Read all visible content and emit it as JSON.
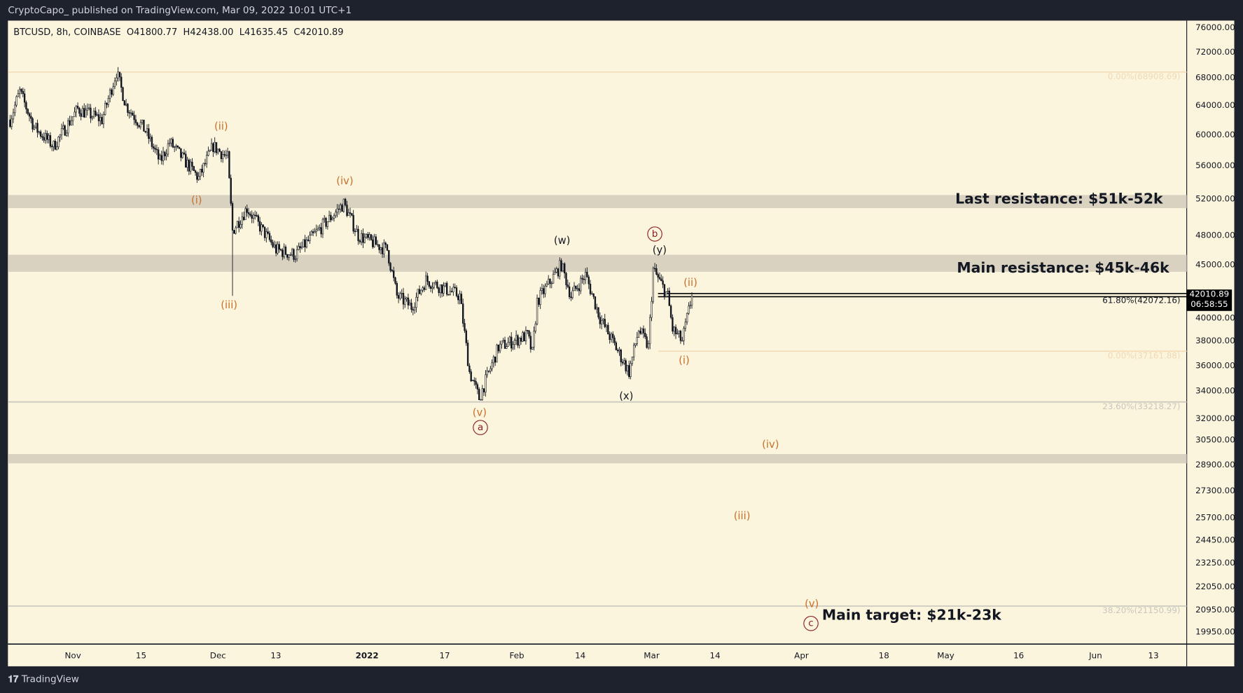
{
  "header": {
    "published": "CryptoCapo_ published on TradingView.com, Mar 09, 2022 10:01 UTC+1"
  },
  "legend": {
    "symbol": "BTCUSD, 8h, COINBASE",
    "open": "O41800.77",
    "high": "H42438.00",
    "low": "L41635.45",
    "close": "C42010.89"
  },
  "footer": {
    "logo": "TradingView",
    "logo_icon": "tradingview-logo-icon"
  },
  "colors": {
    "background": "#fcf5dd",
    "wave_orange": "#c8702a",
    "wave_circle": "#8b2020",
    "zone": "#d9d2c0",
    "frame": "#1e222d"
  },
  "chart_data": {
    "type": "candlestick",
    "timeframe": "8h",
    "y_scale": "log",
    "price_ticks": [
      "76000.00",
      "72000.00",
      "68000.00",
      "64000.00",
      "60000.00",
      "56000.00",
      "52000.00",
      "48000.00",
      "45000.00",
      "40000.00",
      "38000.00",
      "36000.00",
      "34000.00",
      "32000.00",
      "30500.00",
      "28900.00",
      "27300.00",
      "25700.00",
      "24450.00",
      "23250.00",
      "22050.00",
      "20950.00",
      "19950.00"
    ],
    "time_ticks": [
      "Nov",
      "15",
      "Dec",
      "13",
      "2022",
      "17",
      "Feb",
      "14",
      "Mar",
      "14",
      "Apr",
      "18",
      "May",
      "16",
      "Jun",
      "13"
    ],
    "current_price": "42010.89",
    "countdown": "06:58:55",
    "price_path": [
      [
        "2021-10-19",
        62000
      ],
      [
        "2021-10-21",
        66000
      ],
      [
        "2021-10-24",
        61000
      ],
      [
        "2021-10-28",
        58500
      ],
      [
        "2021-11-02",
        63500
      ],
      [
        "2021-11-07",
        62000
      ],
      [
        "2021-11-10",
        68900
      ],
      [
        "2021-11-12",
        64000
      ],
      [
        "2021-11-16",
        60500
      ],
      [
        "2021-11-19",
        56500
      ],
      [
        "2021-11-21",
        59000
      ],
      [
        "2021-11-27",
        54500
      ],
      [
        "2021-11-30",
        58500
      ],
      [
        "2021-12-03",
        57000
      ],
      [
        "2021-12-04",
        48500
      ],
      [
        "2021-12-07",
        51000
      ],
      [
        "2021-12-13",
        46500
      ],
      [
        "2021-12-17",
        46000
      ],
      [
        "2021-12-27",
        51500
      ],
      [
        "2021-12-30",
        48000
      ],
      [
        "2022-01-05",
        46500
      ],
      [
        "2022-01-07",
        42000
      ],
      [
        "2022-01-10",
        41000
      ],
      [
        "2022-01-13",
        43500
      ],
      [
        "2022-01-20",
        42000
      ],
      [
        "2022-01-22",
        35500
      ],
      [
        "2022-01-24",
        33500
      ],
      [
        "2022-01-28",
        37500
      ],
      [
        "2022-02-03",
        38500
      ],
      [
        "2022-02-04",
        37000
      ],
      [
        "2022-02-05",
        41500
      ],
      [
        "2022-02-10",
        45000
      ],
      [
        "2022-02-12",
        42000
      ],
      [
        "2022-02-15",
        44000
      ],
      [
        "2022-02-18",
        40000
      ],
      [
        "2022-02-24",
        35500
      ],
      [
        "2022-02-26",
        39000
      ],
      [
        "2022-02-28",
        37500
      ],
      [
        "2022-03-01",
        44500
      ],
      [
        "2022-03-04",
        42000
      ],
      [
        "2022-03-05",
        39000
      ],
      [
        "2022-03-07",
        38000
      ],
      [
        "2022-03-09",
        42010.89
      ]
    ],
    "zones": [
      {
        "from": 51000,
        "to": 52500
      },
      {
        "from": 44300,
        "to": 46000
      },
      {
        "from": 29000,
        "to": 29600
      }
    ],
    "levels": [
      {
        "price": 68908.69,
        "label": "0.00%(68908.69)",
        "color": "#f3dcb8"
      },
      {
        "price": 42072.16,
        "label": "61.80%(42072.16)",
        "color": "#000000"
      },
      {
        "price": 37161.88,
        "label": "0.00%(37161.88)",
        "color": "#f3dcb8"
      },
      {
        "price": 33218.27,
        "label": "23.60%(33218.27)",
        "color": "#c9c6bd"
      },
      {
        "price": 21150.99,
        "label": "38.20%(21150.99)",
        "color": "#c9c6bd"
      }
    ],
    "annotations": {
      "last_resistance": "Last resistance: $51k-52k",
      "main_resistance": "Main resistance: $45k-46k",
      "main_target": "Main target: $21k-23k"
    },
    "waves": [
      "(ii)",
      "(i)",
      "(iv)",
      "(iii)",
      "(w)",
      "b",
      "(y)",
      "(ii)",
      "(i)",
      "(x)",
      "(v)",
      "a",
      "(iv)",
      "(iii)",
      "(v)",
      "c"
    ]
  }
}
